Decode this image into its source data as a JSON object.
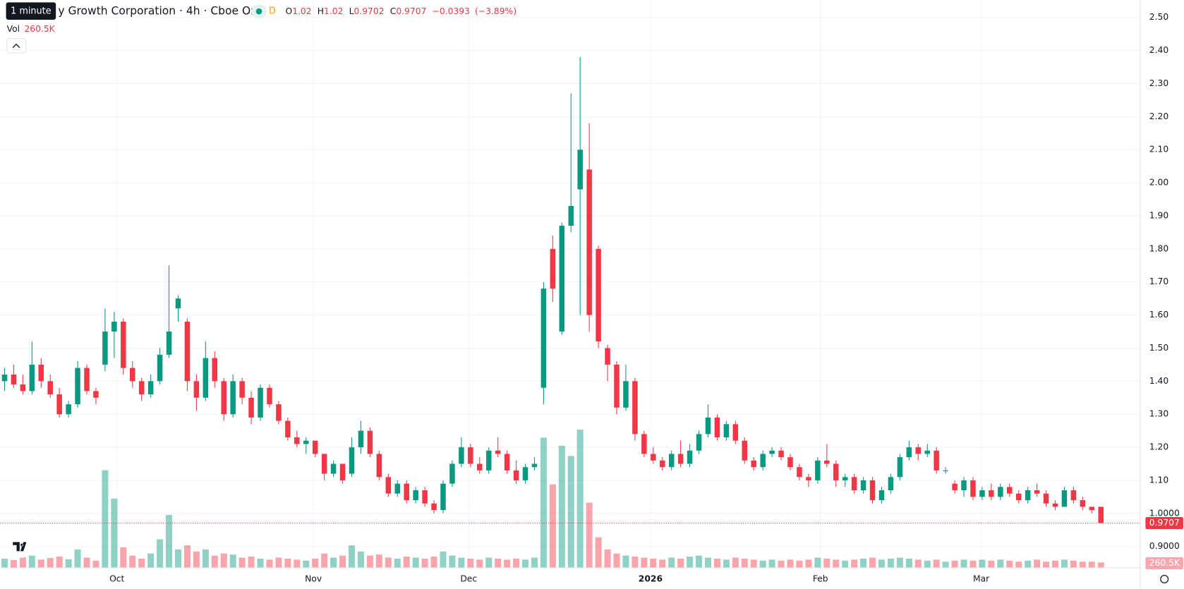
{
  "header": {
    "tooltip": "1 minute",
    "title": "y Growth Corporation · 4h · Cboe One",
    "badge": "D",
    "ohlc_labels": [
      "O",
      "H",
      "L",
      "C"
    ],
    "ohlc": {
      "open": 1.02,
      "high": 1.02,
      "low": 0.9702,
      "close": 0.9707,
      "change": {
        "value": -0.0393,
        "label": "−0.0393"
      },
      "change_pct": {
        "value": -3.89,
        "label": "(−3.89%)"
      }
    },
    "vol_label": "Vol",
    "volume": {
      "value": 260500,
      "label": "260.5K"
    }
  },
  "chart_data": {
    "type": "candlestick",
    "up_color": "#089981",
    "down_color": "#f23645",
    "grid": true,
    "ylim": [
      0.8356,
      2.5525
    ],
    "yticks": [
      {
        "value": 0.9,
        "label": "0.9000"
      },
      {
        "value": 1.0,
        "label": "1.0000"
      },
      {
        "value": 1.1,
        "label": "1.10"
      },
      {
        "value": 1.2,
        "label": "1.20"
      },
      {
        "value": 1.3,
        "label": "1.30"
      },
      {
        "value": 1.4,
        "label": "1.40"
      },
      {
        "value": 1.5,
        "label": "1.50"
      },
      {
        "value": 1.6,
        "label": "1.60"
      },
      {
        "value": 1.7,
        "label": "1.70"
      },
      {
        "value": 1.8,
        "label": "1.80"
      },
      {
        "value": 1.9,
        "label": "1.90"
      },
      {
        "value": 2.0,
        "label": "2.00"
      },
      {
        "value": 2.1,
        "label": "2.10"
      },
      {
        "value": 2.2,
        "label": "2.20"
      },
      {
        "value": 2.3,
        "label": "2.30"
      },
      {
        "value": 2.4,
        "label": "2.40"
      },
      {
        "value": 2.5,
        "label": "2.50"
      }
    ],
    "xlim": [
      -0.5,
      124.3
    ],
    "xticks": [
      {
        "value": 12.3,
        "label": "Oct"
      },
      {
        "value": 33.8,
        "label": "Nov"
      },
      {
        "value": 50.8,
        "label": "Dec"
      },
      {
        "value": 70.7,
        "label": "2026"
      },
      {
        "value": 89.3,
        "label": "Feb"
      },
      {
        "value": 106.9,
        "label": "Mar"
      }
    ],
    "vlim": [
      0,
      7500000
    ],
    "candles": [
      [
        1.4,
        1.44,
        1.37,
        1.42
      ],
      [
        1.42,
        1.45,
        1.38,
        1.39
      ],
      [
        1.39,
        1.42,
        1.36,
        1.37
      ],
      [
        1.37,
        1.52,
        1.36,
        1.45
      ],
      [
        1.45,
        1.47,
        1.38,
        1.4
      ],
      [
        1.4,
        1.42,
        1.35,
        1.36
      ],
      [
        1.36,
        1.38,
        1.29,
        1.3
      ],
      [
        1.3,
        1.34,
        1.29,
        1.33
      ],
      [
        1.33,
        1.46,
        1.32,
        1.44
      ],
      [
        1.44,
        1.45,
        1.36,
        1.37
      ],
      [
        1.37,
        1.38,
        1.33,
        1.35
      ],
      [
        1.45,
        1.62,
        1.43,
        1.55
      ],
      [
        1.55,
        1.61,
        1.47,
        1.58
      ],
      [
        1.58,
        1.59,
        1.42,
        1.44
      ],
      [
        1.44,
        1.46,
        1.38,
        1.4
      ],
      [
        1.4,
        1.41,
        1.34,
        1.36
      ],
      [
        1.36,
        1.42,
        1.35,
        1.4
      ],
      [
        1.4,
        1.5,
        1.39,
        1.48
      ],
      [
        1.48,
        1.75,
        1.47,
        1.55
      ],
      [
        1.62,
        1.66,
        1.58,
        1.65
      ],
      [
        1.58,
        1.59,
        1.37,
        1.4
      ],
      [
        1.4,
        1.42,
        1.31,
        1.35
      ],
      [
        1.35,
        1.52,
        1.34,
        1.47
      ],
      [
        1.47,
        1.49,
        1.38,
        1.4
      ],
      [
        1.4,
        1.41,
        1.28,
        1.3
      ],
      [
        1.3,
        1.42,
        1.29,
        1.4
      ],
      [
        1.4,
        1.41,
        1.33,
        1.35
      ],
      [
        1.35,
        1.37,
        1.27,
        1.29
      ],
      [
        1.29,
        1.39,
        1.28,
        1.38
      ],
      [
        1.38,
        1.39,
        1.32,
        1.33
      ],
      [
        1.33,
        1.34,
        1.27,
        1.28
      ],
      [
        1.28,
        1.29,
        1.22,
        1.23
      ],
      [
        1.23,
        1.25,
        1.2,
        1.21
      ],
      [
        1.21,
        1.23,
        1.18,
        1.22
      ],
      [
        1.22,
        1.22,
        1.17,
        1.18
      ],
      [
        1.18,
        1.18,
        1.1,
        1.12
      ],
      [
        1.12,
        1.16,
        1.11,
        1.15
      ],
      [
        1.15,
        1.15,
        1.09,
        1.1
      ],
      [
        1.12,
        1.23,
        1.11,
        1.2
      ],
      [
        1.2,
        1.28,
        1.18,
        1.25
      ],
      [
        1.25,
        1.26,
        1.17,
        1.18
      ],
      [
        1.18,
        1.19,
        1.1,
        1.11
      ],
      [
        1.11,
        1.12,
        1.05,
        1.06
      ],
      [
        1.06,
        1.1,
        1.05,
        1.09
      ],
      [
        1.09,
        1.1,
        1.03,
        1.04
      ],
      [
        1.04,
        1.08,
        1.03,
        1.07
      ],
      [
        1.07,
        1.08,
        1.02,
        1.03
      ],
      [
        1.03,
        1.04,
        1.0,
        1.01
      ],
      [
        1.01,
        1.1,
        1.0,
        1.09
      ],
      [
        1.09,
        1.16,
        1.08,
        1.15
      ],
      [
        1.15,
        1.23,
        1.14,
        1.2
      ],
      [
        1.2,
        1.21,
        1.14,
        1.15
      ],
      [
        1.15,
        1.17,
        1.12,
        1.13
      ],
      [
        1.13,
        1.2,
        1.12,
        1.19
      ],
      [
        1.19,
        1.23,
        1.17,
        1.18
      ],
      [
        1.18,
        1.19,
        1.12,
        1.13
      ],
      [
        1.13,
        1.16,
        1.09,
        1.1
      ],
      [
        1.1,
        1.15,
        1.09,
        1.14
      ],
      [
        1.14,
        1.17,
        1.13,
        1.15
      ],
      [
        1.38,
        1.7,
        1.33,
        1.68
      ],
      [
        1.8,
        1.84,
        1.64,
        1.68
      ],
      [
        1.55,
        1.88,
        1.54,
        1.87
      ],
      [
        1.87,
        2.27,
        1.85,
        1.93
      ],
      [
        1.98,
        2.38,
        1.6,
        2.1
      ],
      [
        2.04,
        2.18,
        1.55,
        1.6
      ],
      [
        1.8,
        1.81,
        1.5,
        1.52
      ],
      [
        1.5,
        1.51,
        1.4,
        1.45
      ],
      [
        1.45,
        1.46,
        1.3,
        1.32
      ],
      [
        1.32,
        1.45,
        1.31,
        1.4
      ],
      [
        1.4,
        1.41,
        1.22,
        1.24
      ],
      [
        1.24,
        1.25,
        1.17,
        1.18
      ],
      [
        1.18,
        1.2,
        1.15,
        1.16
      ],
      [
        1.16,
        1.17,
        1.13,
        1.14
      ],
      [
        1.14,
        1.19,
        1.13,
        1.18
      ],
      [
        1.18,
        1.22,
        1.14,
        1.15
      ],
      [
        1.15,
        1.21,
        1.14,
        1.19
      ],
      [
        1.19,
        1.25,
        1.18,
        1.24
      ],
      [
        1.24,
        1.33,
        1.23,
        1.29
      ],
      [
        1.29,
        1.3,
        1.22,
        1.23
      ],
      [
        1.23,
        1.28,
        1.22,
        1.27
      ],
      [
        1.27,
        1.28,
        1.21,
        1.22
      ],
      [
        1.22,
        1.23,
        1.15,
        1.16
      ],
      [
        1.16,
        1.17,
        1.13,
        1.14
      ],
      [
        1.14,
        1.19,
        1.13,
        1.18
      ],
      [
        1.18,
        1.2,
        1.17,
        1.19
      ],
      [
        1.19,
        1.2,
        1.16,
        1.17
      ],
      [
        1.17,
        1.18,
        1.13,
        1.14
      ],
      [
        1.14,
        1.15,
        1.1,
        1.11
      ],
      [
        1.11,
        1.12,
        1.08,
        1.1
      ],
      [
        1.1,
        1.17,
        1.09,
        1.16
      ],
      [
        1.16,
        1.21,
        1.14,
        1.15
      ],
      [
        1.15,
        1.16,
        1.08,
        1.1
      ],
      [
        1.1,
        1.12,
        1.08,
        1.11
      ],
      [
        1.11,
        1.12,
        1.06,
        1.07
      ],
      [
        1.07,
        1.11,
        1.06,
        1.1
      ],
      [
        1.1,
        1.11,
        1.03,
        1.04
      ],
      [
        1.04,
        1.08,
        1.03,
        1.07
      ],
      [
        1.07,
        1.12,
        1.06,
        1.11
      ],
      [
        1.11,
        1.18,
        1.1,
        1.17
      ],
      [
        1.17,
        1.22,
        1.16,
        1.2
      ],
      [
        1.2,
        1.21,
        1.16,
        1.18
      ],
      [
        1.18,
        1.21,
        1.17,
        1.19
      ],
      [
        1.19,
        1.2,
        1.12,
        1.13
      ],
      [
        1.13,
        1.14,
        1.12,
        1.13
      ],
      [
        1.09,
        1.1,
        1.06,
        1.07
      ],
      [
        1.07,
        1.11,
        1.05,
        1.1
      ],
      [
        1.1,
        1.11,
        1.04,
        1.05
      ],
      [
        1.05,
        1.08,
        1.04,
        1.07
      ],
      [
        1.07,
        1.09,
        1.04,
        1.05
      ],
      [
        1.05,
        1.09,
        1.04,
        1.08
      ],
      [
        1.08,
        1.09,
        1.05,
        1.06
      ],
      [
        1.06,
        1.07,
        1.03,
        1.04
      ],
      [
        1.04,
        1.08,
        1.03,
        1.07
      ],
      [
        1.07,
        1.09,
        1.05,
        1.06
      ],
      [
        1.06,
        1.07,
        1.02,
        1.03
      ],
      [
        1.03,
        1.04,
        1.01,
        1.02
      ],
      [
        1.02,
        1.08,
        1.02,
        1.07
      ],
      [
        1.07,
        1.08,
        1.03,
        1.04
      ],
      [
        1.04,
        1.05,
        1.01,
        1.02
      ],
      [
        1.02,
        1.02,
        1.0,
        1.01
      ],
      [
        1.02,
        1.02,
        0.9702,
        0.9707
      ]
    ],
    "volumes": [
      450000,
      380000,
      520000,
      600000,
      400000,
      480000,
      550000,
      420000,
      900000,
      500000,
      350000,
      4800000,
      3400000,
      1000000,
      600000,
      450000,
      700000,
      1400000,
      2600000,
      900000,
      1100000,
      800000,
      900000,
      600000,
      700000,
      650000,
      500000,
      550000,
      450000,
      400000,
      500000,
      450000,
      400000,
      350000,
      450000,
      700000,
      500000,
      600000,
      1100000,
      800000,
      600000,
      650000,
      500000,
      450000,
      550000,
      500000,
      450000,
      550000,
      800000,
      600000,
      500000,
      450000,
      400000,
      500000,
      450000,
      400000,
      450000,
      400000,
      500000,
      6400000,
      4100000,
      6000000,
      5500000,
      6800000,
      3200000,
      1500000,
      900000,
      700000,
      600000,
      550000,
      500000,
      450000,
      400000,
      500000,
      450000,
      550000,
      600000,
      500000,
      450000,
      400000,
      500000,
      450000,
      400000,
      350000,
      400000,
      350000,
      400000,
      350000,
      400000,
      500000,
      450000,
      400000,
      350000,
      400000,
      450000,
      500000,
      400000,
      450000,
      500000,
      450000,
      400000,
      350000,
      400000,
      300000,
      350000,
      400000,
      350000,
      400000,
      350000,
      400000,
      350000,
      300000,
      350000,
      400000,
      300000,
      350000,
      400000,
      350000,
      300000,
      300000,
      260500
    ]
  }
}
